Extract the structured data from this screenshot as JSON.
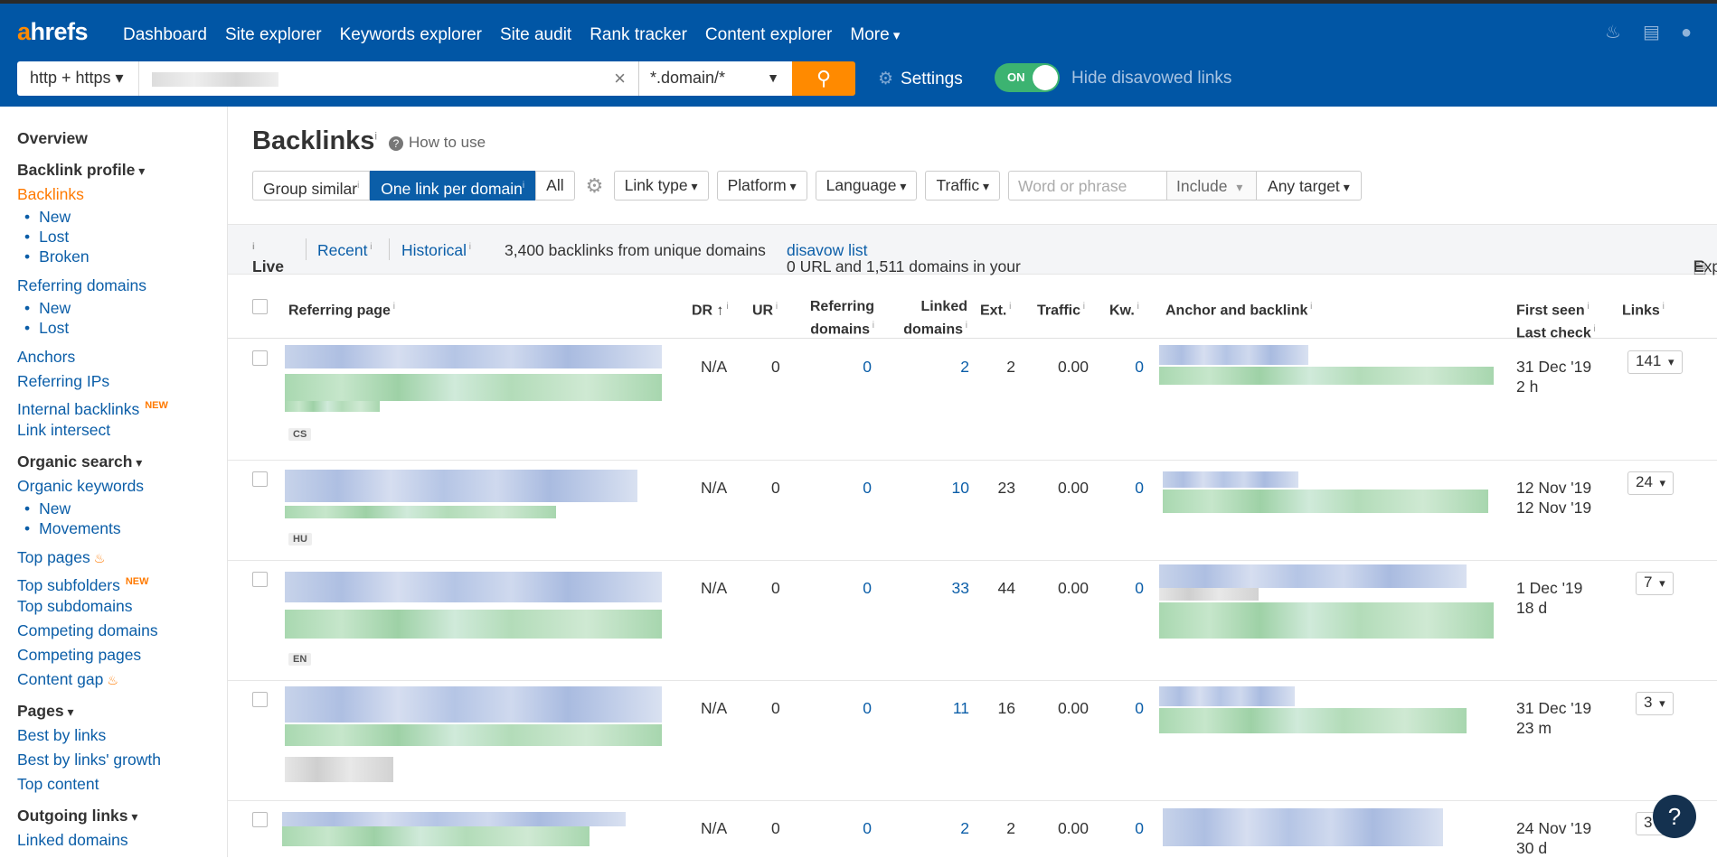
{
  "topbar": {
    "logo_a": "a",
    "logo_rest": "hrefs",
    "nav": [
      "Dashboard",
      "Site explorer",
      "Keywords explorer",
      "Site audit",
      "Rank tracker",
      "Content explorer"
    ],
    "more": "More",
    "protocol": "http + https ▾",
    "mode": "*.domain/*",
    "settings": "Settings",
    "toggle": "ON",
    "hide_disavowed": "Hide disavowed links"
  },
  "sidebar": {
    "overview": "Overview",
    "backlink_profile": "Backlink profile",
    "backlinks": "Backlinks",
    "bl_new": "New",
    "bl_lost": "Lost",
    "bl_broken": "Broken",
    "referring_domains": "Referring domains",
    "rd_new": "New",
    "rd_lost": "Lost",
    "anchors": "Anchors",
    "referring_ips": "Referring IPs",
    "internal_backlinks": "Internal backlinks",
    "new_badge": "NEW",
    "link_intersect": "Link intersect",
    "organic_search": "Organic search",
    "organic_keywords": "Organic keywords",
    "ok_new": "New",
    "ok_movements": "Movements",
    "top_pages": "Top pages",
    "top_subfolders": "Top subfolders",
    "top_subdomains": "Top subdomains",
    "competing_domains": "Competing domains",
    "competing_pages": "Competing pages",
    "content_gap": "Content gap",
    "pages": "Pages",
    "best_by_links": "Best by links",
    "best_by_links_growth": "Best by links' growth",
    "top_content": "Top content",
    "outgoing_links": "Outgoing links",
    "linked_domains": "Linked domains"
  },
  "main": {
    "title": "Backlinks",
    "how_to_use": "How to use",
    "group_similar": "Group similar",
    "one_link_per_domain": "One link per domain",
    "all": "All",
    "link_type": "Link type",
    "platform": "Platform",
    "language": "Language",
    "traffic": "Traffic",
    "phrase_placeholder": "Word or phrase",
    "include": "Include",
    "any_target": "Any target",
    "live": "Live",
    "recent": "Recent",
    "historical": "Historical",
    "summary": "3,400 backlinks from unique domains",
    "disavow_text": "0 URL and 1,511 domains in your",
    "disavow_link": "disavow list",
    "export": "Export"
  },
  "table": {
    "headers": {
      "referring_page": "Referring page",
      "dr": "DR ↑",
      "ur": "UR",
      "referring_domains_1": "Referring",
      "referring_domains_2": "domains",
      "linked_domains_1": "Linked",
      "linked_domains_2": "domains",
      "ext": "Ext.",
      "traffic": "Traffic",
      "kw": "Kw.",
      "anchor": "Anchor and backlink",
      "first_seen": "First seen",
      "last_check": "Last check",
      "links": "Links"
    },
    "rows": [
      {
        "lang": "CS",
        "dr": "N/A",
        "ur": "0",
        "rd": "0",
        "ld": "2",
        "ext": "2",
        "traffic": "0.00",
        "kw": "0",
        "first_seen": "31 Dec '19",
        "last_check": "2 h",
        "links": "141"
      },
      {
        "lang": "HU",
        "dr": "N/A",
        "ur": "0",
        "rd": "0",
        "ld": "10",
        "ext": "23",
        "traffic": "0.00",
        "kw": "0",
        "first_seen": "12 Nov '19",
        "last_check": "12 Nov '19",
        "links": "24"
      },
      {
        "lang": "EN",
        "dr": "N/A",
        "ur": "0",
        "rd": "0",
        "ld": "33",
        "ext": "44",
        "traffic": "0.00",
        "kw": "0",
        "first_seen": "1 Dec '19",
        "last_check": "18 d",
        "links": "7"
      },
      {
        "lang": "",
        "dr": "N/A",
        "ur": "0",
        "rd": "0",
        "ld": "11",
        "ext": "16",
        "traffic": "0.00",
        "kw": "0",
        "first_seen": "31 Dec '19",
        "last_check": "23 m",
        "links": "3"
      },
      {
        "lang": "",
        "dr": "N/A",
        "ur": "0",
        "rd": "0",
        "ld": "2",
        "ext": "2",
        "traffic": "0.00",
        "kw": "0",
        "first_seen": "24 Nov '19",
        "last_check": "30 d",
        "links": "3"
      }
    ]
  },
  "help": "?",
  "colors": {
    "nav_bg": "#0156a5",
    "accent": "#ff8a00",
    "link": "#0b5ea8",
    "toggle_on": "#3cb371"
  }
}
